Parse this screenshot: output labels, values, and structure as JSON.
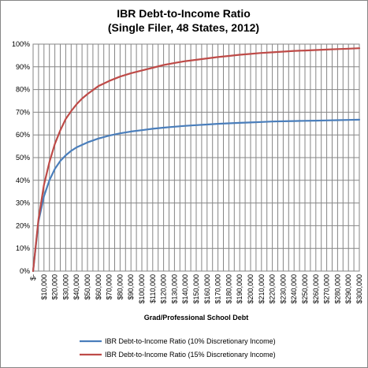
{
  "chart_data": {
    "type": "line",
    "title": "IBR Debt-to-Income Ratio",
    "subtitle": "(Single Filer, 48 States, 2012)",
    "xlabel": "Grad/Professional School Debt",
    "ylabel": "",
    "x_tick_labels": [
      "$-",
      "$10,000",
      "$20,000",
      "$30,000",
      "$40,000",
      "$50,000",
      "$60,000",
      "$70,000",
      "$80,000",
      "$90,000",
      "$100,000",
      "$110,000",
      "$120,000",
      "$130,000",
      "$140,000",
      "$150,000",
      "$160,000",
      "$170,000",
      "$180,000",
      "$190,000",
      "$200,000",
      "$210,000",
      "$220,000",
      "$230,000",
      "$240,000",
      "$250,000",
      "$260,000",
      "$270,000",
      "$280,000",
      "$290,000",
      "$300,000"
    ],
    "y_tick_labels": [
      "0%",
      "10%",
      "20%",
      "30%",
      "40%",
      "50%",
      "60%",
      "70%",
      "80%",
      "90%",
      "100%"
    ],
    "xlim": [
      0,
      300000
    ],
    "ylim": [
      0,
      1
    ],
    "grid": true,
    "legend_position": "bottom",
    "x": [
      0,
      5000,
      10000,
      15000,
      20000,
      25000,
      30000,
      35000,
      40000,
      45000,
      50000,
      60000,
      70000,
      80000,
      90000,
      100000,
      110000,
      120000,
      130000,
      140000,
      150000,
      160000,
      170000,
      180000,
      190000,
      200000,
      210000,
      220000,
      230000,
      240000,
      250000,
      260000,
      270000,
      280000,
      290000,
      300000
    ],
    "series": [
      {
        "name": "IBR Debt-to-Income Ratio (10% Discretionary Income)",
        "color": "#4a7ebb",
        "values": [
          0.0,
          0.22,
          0.33,
          0.4,
          0.45,
          0.485,
          0.51,
          0.53,
          0.545,
          0.556,
          0.567,
          0.584,
          0.597,
          0.607,
          0.615,
          0.621,
          0.627,
          0.632,
          0.636,
          0.64,
          0.643,
          0.646,
          0.649,
          0.651,
          0.653,
          0.655,
          0.657,
          0.659,
          0.66,
          0.661,
          0.662,
          0.663,
          0.664,
          0.665,
          0.666,
          0.667
        ]
      },
      {
        "name": "IBR Debt-to-Income Ratio (15% Discretionary Income)",
        "color": "#be4b48",
        "values": [
          0.0,
          0.23,
          0.38,
          0.48,
          0.56,
          0.62,
          0.67,
          0.705,
          0.735,
          0.76,
          0.78,
          0.815,
          0.838,
          0.857,
          0.872,
          0.884,
          0.896,
          0.908,
          0.917,
          0.925,
          0.931,
          0.937,
          0.943,
          0.948,
          0.953,
          0.957,
          0.961,
          0.964,
          0.967,
          0.97,
          0.972,
          0.974,
          0.976,
          0.978,
          0.98,
          0.982
        ]
      }
    ]
  }
}
